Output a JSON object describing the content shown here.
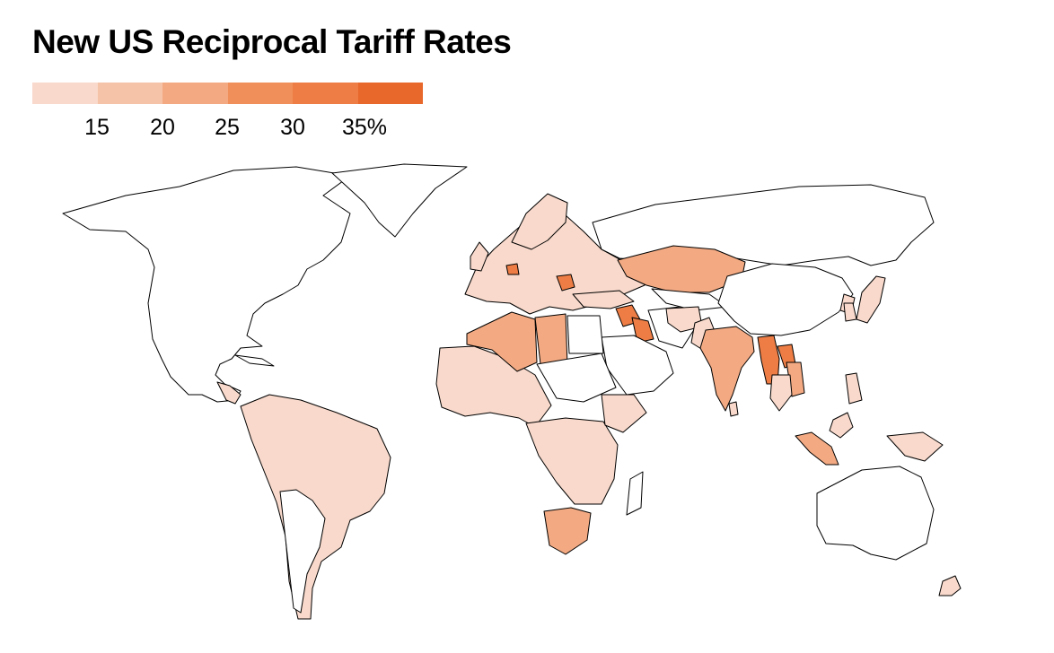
{
  "title": "New US Reciprocal Tariff Rates",
  "legend": {
    "ticks": [
      "15",
      "20",
      "25",
      "30",
      "35%"
    ],
    "colors": [
      "#f8d9cb",
      "#f5c3a8",
      "#f3aa83",
      "#f08f59",
      "#ed7d45",
      "#e8672b"
    ]
  },
  "map_data": {
    "type": "choropleth",
    "no_rate_color": "#ffffff",
    "country_groups": [
      {
        "group": "under_15",
        "color": "#f8d9cb",
        "regions": [
          "europe",
          "south-america",
          "central-africa",
          "east-africa",
          "west-africa",
          "japan",
          "korea",
          "philippines",
          "new-zealand",
          "afghanistan",
          "pakistan",
          "mongolia-east",
          "indonesia-borneo"
        ]
      },
      {
        "group": "20_25",
        "color": "#f3aa83",
        "regions": [
          "kazakhstan",
          "india",
          "algeria",
          "libya",
          "south-africa",
          "vietnam",
          "cambodia",
          "sumatra"
        ]
      },
      {
        "group": "30_35",
        "color": "#ed7d45",
        "regions": [
          "syria",
          "iraq",
          "myanmar",
          "laos",
          "serbia",
          "bosnia"
        ]
      }
    ]
  }
}
